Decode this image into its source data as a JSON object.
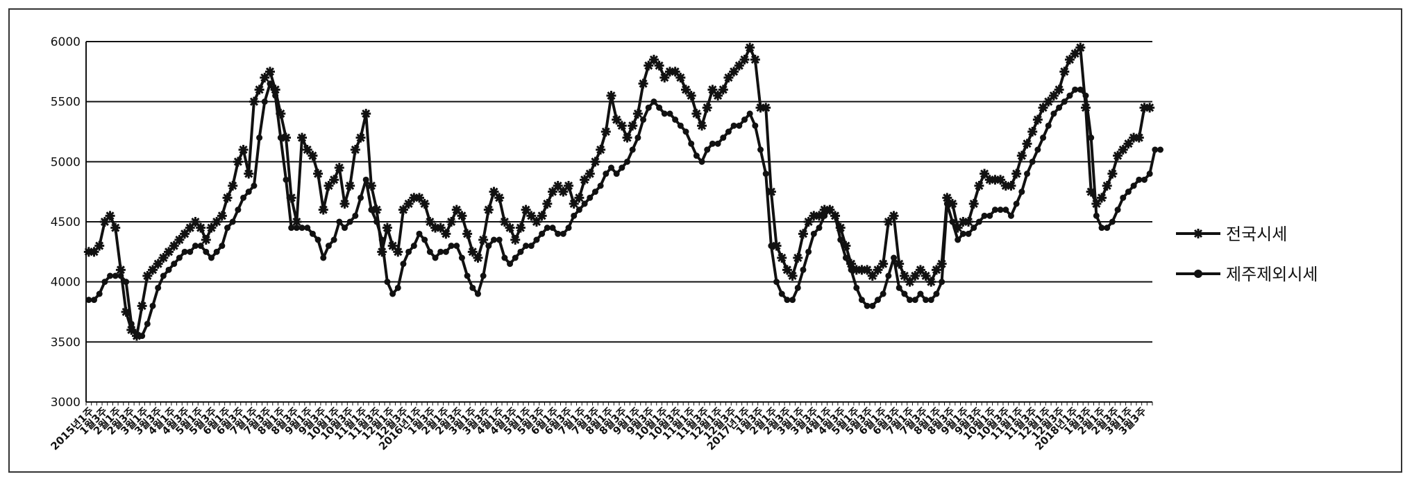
{
  "chart_data": {
    "type": "line",
    "title": "",
    "xlabel": "",
    "ylabel": "",
    "ylim": [
      3000,
      6000
    ],
    "yticks": [
      3000,
      3500,
      4000,
      4500,
      5000,
      5500,
      6000
    ],
    "grid": true,
    "legend_position": "right",
    "x_tick_labels": [
      "2015년1주",
      "1월3주",
      "2월1주",
      "2월3주",
      "3월1주",
      "3월3주",
      "4월1주",
      "4월3주",
      "5월1주",
      "5월3주",
      "6월1주",
      "6월3주",
      "7월1주",
      "7월3주",
      "8월1주",
      "8월3주",
      "9월1주",
      "9월3주",
      "10월1주",
      "10월3주",
      "11월1주",
      "11월3주",
      "12월1주",
      "12월3주",
      "2016년1주",
      "1월3주",
      "2월1주",
      "2월3주",
      "3월1주",
      "3월3주",
      "4월1주",
      "4월3주",
      "5월1주",
      "5월3주",
      "6월1주",
      "6월3주",
      "7월1주",
      "7월3주",
      "8월1주",
      "8월3주",
      "9월1주",
      "9월3주",
      "10월1주",
      "10월3주",
      "11월1주",
      "11월3주",
      "12월1주",
      "12월3주",
      "2017년1주",
      "1월3주",
      "2월1주",
      "2월3주",
      "3월1주",
      "3월3주",
      "4월1주",
      "4월3주",
      "5월1주",
      "5월3주",
      "6월1주",
      "6월3주",
      "7월1주",
      "7월3주",
      "8월1주",
      "8월3주",
      "9월1주",
      "9월3주",
      "10월1주",
      "10월3주",
      "11월1주",
      "11월3주",
      "12월1주",
      "12월3주",
      "2018년1주",
      "1월3주",
      "2월1주",
      "2월3주",
      "3월1주",
      "3월3주"
    ],
    "series": [
      {
        "name": "전국시세",
        "color": "#111111",
        "marker": "star",
        "values": [
          4250,
          4250,
          4300,
          4500,
          4550,
          4450,
          4100,
          3750,
          3600,
          3550,
          3800,
          4050,
          4100,
          4150,
          4200,
          4250,
          4300,
          4350,
          4400,
          4450,
          4500,
          4450,
          4350,
          4450,
          4500,
          4550,
          4700,
          4800,
          5000,
          5100,
          4900,
          5500,
          5600,
          5700,
          5750,
          5600,
          5400,
          5200,
          4700,
          4500,
          5200,
          5100,
          5050,
          4900,
          4600,
          4800,
          4850,
          4950,
          4650,
          4800,
          5100,
          5200,
          5400,
          4800,
          4600,
          4250,
          4450,
          4300,
          4250,
          4600,
          4650,
          4700,
          4700,
          4650,
          4500,
          4450,
          4450,
          4400,
          4500,
          4600,
          4550,
          4400,
          4250,
          4200,
          4350,
          4600,
          4750,
          4700,
          4500,
          4450,
          4350,
          4450,
          4600,
          4550,
          4500,
          4550,
          4650,
          4750,
          4800,
          4750,
          4800,
          4650,
          4700,
          4850,
          4900,
          5000,
          5100,
          5250,
          5550,
          5350,
          5300,
          5200,
          5300,
          5400,
          5650,
          5800,
          5850,
          5800,
          5700,
          5750,
          5750,
          5700,
          5600,
          5550,
          5400,
          5300,
          5450,
          5600,
          5550,
          5600,
          5700,
          5750,
          5800,
          5850,
          5950,
          5850,
          5450,
          5450,
          4750,
          4300,
          4200,
          4100,
          4050,
          4200,
          4400,
          4500,
          4550,
          4550,
          4600,
          4600,
          4550,
          4450,
          4300,
          4150,
          4100,
          4100,
          4100,
          4050,
          4100,
          4150,
          4500,
          4550,
          4150,
          4050,
          4000,
          4050,
          4100,
          4050,
          4000,
          4100,
          4150,
          4700,
          4650,
          4450,
          4500,
          4500,
          4650,
          4800,
          4900,
          4850,
          4850,
          4850,
          4800,
          4800,
          4900,
          5050,
          5150,
          5250,
          5350,
          5450,
          5500,
          5550,
          5600,
          5750,
          5850,
          5900,
          5950,
          5450,
          4750,
          4650,
          4700,
          4800,
          4900,
          5050,
          5100,
          5150,
          5200,
          5200,
          5450,
          5450
        ]
      },
      {
        "name": "제주제외시세",
        "color": "#111111",
        "marker": "circle",
        "values": [
          3850,
          3850,
          3900,
          4000,
          4050,
          4050,
          4050,
          4000,
          3650,
          3550,
          3550,
          3650,
          3800,
          3950,
          4050,
          4100,
          4150,
          4200,
          4250,
          4250,
          4300,
          4300,
          4250,
          4200,
          4250,
          4300,
          4450,
          4500,
          4600,
          4700,
          4750,
          4800,
          5200,
          5500,
          5650,
          5550,
          5200,
          4850,
          4450,
          4450,
          4450,
          4450,
          4400,
          4350,
          4200,
          4300,
          4350,
          4500,
          4450,
          4500,
          4550,
          4700,
          4850,
          4600,
          4500,
          4350,
          4000,
          3900,
          3950,
          4150,
          4250,
          4300,
          4400,
          4350,
          4250,
          4200,
          4250,
          4250,
          4300,
          4300,
          4200,
          4050,
          3950,
          3900,
          4050,
          4300,
          4350,
          4350,
          4200,
          4150,
          4200,
          4250,
          4300,
          4300,
          4350,
          4400,
          4450,
          4450,
          4400,
          4400,
          4450,
          4550,
          4600,
          4650,
          4700,
          4750,
          4800,
          4900,
          4950,
          4900,
          4950,
          5000,
          5100,
          5200,
          5350,
          5450,
          5500,
          5450,
          5400,
          5400,
          5350,
          5300,
          5250,
          5150,
          5050,
          5000,
          5100,
          5150,
          5150,
          5200,
          5250,
          5300,
          5300,
          5350,
          5400,
          5300,
          5100,
          4900,
          4300,
          4000,
          3900,
          3850,
          3850,
          3950,
          4100,
          4250,
          4400,
          4450,
          4550,
          4600,
          4550,
          4350,
          4200,
          4100,
          3950,
          3850,
          3800,
          3800,
          3850,
          3900,
          4050,
          4200,
          3950,
          3900,
          3850,
          3850,
          3900,
          3850,
          3850,
          3900,
          4000,
          4650,
          4500,
          4350,
          4400,
          4400,
          4450,
          4500,
          4550,
          4550,
          4600,
          4600,
          4600,
          4550,
          4650,
          4750,
          4900,
          5000,
          5100,
          5200,
          5300,
          5400,
          5450,
          5500,
          5550,
          5600,
          5600,
          5550,
          5200,
          4550,
          4450,
          4450,
          4500,
          4600,
          4700,
          4750,
          4800,
          4850,
          4850,
          4900,
          5100,
          5100
        ]
      }
    ]
  }
}
